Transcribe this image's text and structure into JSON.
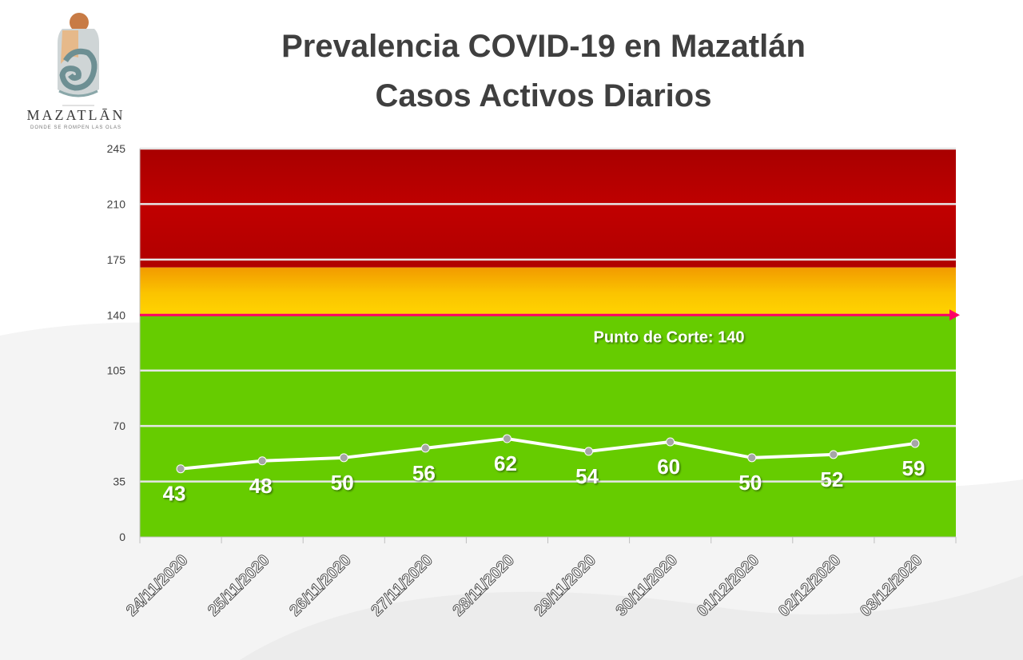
{
  "logo": {
    "name": "MAZATLĀN",
    "tagline": "DONDE SE ROMPEN LAS OLAS"
  },
  "colors": {
    "red_zone": "#c00000",
    "orange_zone": "#ffc000",
    "green_zone": "#66cc00",
    "cutoff_line": "#ff0066",
    "series_line": "#ffffff",
    "title": "#3f3f3f"
  },
  "chart_data": {
    "type": "line",
    "title": "Prevalencia COVID-19 en Mazatlán",
    "subtitle": "Casos Activos Diarios",
    "categories": [
      "24/11/2020",
      "25/11/2020",
      "26/11/2020",
      "27/11/2020",
      "28/11/2020",
      "29/11/2020",
      "30/11/2020",
      "01/12/2020",
      "02/12/2020",
      "03/12/2020"
    ],
    "series": [
      {
        "values": [
          43,
          48,
          50,
          56,
          62,
          54,
          60,
          50,
          52,
          59
        ]
      }
    ],
    "ylim": [
      0,
      245
    ],
    "yticks": [
      0,
      35,
      70,
      105,
      140,
      175,
      210,
      245
    ],
    "grid": true,
    "zones": [
      {
        "from": 0,
        "to": 140,
        "color": "green"
      },
      {
        "from": 140,
        "to": 170,
        "color": "orange-yellow gradient"
      },
      {
        "from": 170,
        "to": 245,
        "color": "red"
      }
    ],
    "cutoff": {
      "value": 140,
      "label": "Punto de Corte: 140"
    }
  }
}
